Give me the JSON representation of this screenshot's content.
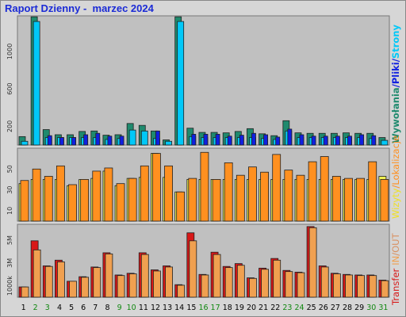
{
  "header": {
    "title": "Raport Dzienny -  marzec 2024"
  },
  "colors": {
    "plot_bg": "#c0c0c0",
    "wywolania": "#1f8a6e",
    "pliki": "#00c8f8",
    "strony": "#1020e0",
    "wizyty": "#f0f050",
    "lokalizacje": "#ff9020",
    "transfer": "#d81818",
    "in": "#f0a050",
    "out": "#d89060",
    "weekend_label": "#118811",
    "weekday_label": "#000000"
  },
  "legend": {
    "top_title": "Wywołania",
    "top_sep1": "/",
    "top_pliki": "Pliki",
    "top_sep2": "/",
    "top_strony": "Strony",
    "mid_wizyty": "Wizyty",
    "mid_sep": "/",
    "mid_lokalizacje": "Lokalizacje",
    "bot_transfer": "Transfer",
    "bot_in": "IN",
    "bot_sep": "/",
    "bot_out": "OUT"
  },
  "chart_data": [
    {
      "type": "bar",
      "panel": "top",
      "categories": [
        "1",
        "2",
        "3",
        "4",
        "5",
        "6",
        "7",
        "8",
        "9",
        "10",
        "11",
        "12",
        "13",
        "14",
        "15",
        "16",
        "17",
        "18",
        "19",
        "20",
        "21",
        "22",
        "23",
        "24",
        "25",
        "26",
        "27",
        "28",
        "29",
        "30",
        "31"
      ],
      "weekend": [
        false,
        true,
        true,
        false,
        false,
        false,
        false,
        false,
        true,
        true,
        false,
        false,
        false,
        false,
        false,
        true,
        true,
        false,
        false,
        false,
        false,
        false,
        true,
        true,
        false,
        false,
        false,
        false,
        false,
        true,
        true
      ],
      "y_ticks": [
        "200",
        "600",
        "1000"
      ],
      "y_tick_values": [
        200,
        600,
        1000
      ],
      "ylim": [
        0,
        1380
      ],
      "series": [
        {
          "name": "Wywołania",
          "values": [
            90,
            1370,
            165,
            110,
            110,
            145,
            150,
            105,
            110,
            230,
            210,
            150,
            55,
            1370,
            180,
            135,
            135,
            130,
            145,
            175,
            120,
            100,
            260,
            130,
            125,
            125,
            125,
            130,
            125,
            125,
            80
          ]
        },
        {
          "name": "Pliki",
          "values": [
            40,
            1320,
            80,
            80,
            80,
            80,
            80,
            60,
            70,
            160,
            150,
            70,
            40,
            1320,
            90,
            80,
            80,
            80,
            80,
            80,
            70,
            60,
            150,
            80,
            80,
            80,
            80,
            80,
            80,
            70,
            50
          ]
        },
        {
          "name": "Strony",
          "values": [
            0,
            0,
            100,
            80,
            80,
            110,
            125,
            95,
            95,
            0,
            0,
            150,
            0,
            0,
            115,
            115,
            115,
            95,
            105,
            125,
            110,
            85,
            170,
            110,
            95,
            95,
            95,
            95,
            110,
            100,
            0
          ]
        }
      ]
    },
    {
      "type": "bar",
      "panel": "middle",
      "categories": [
        "1",
        "2",
        "3",
        "4",
        "5",
        "6",
        "7",
        "8",
        "9",
        "10",
        "11",
        "12",
        "13",
        "14",
        "15",
        "16",
        "17",
        "18",
        "19",
        "20",
        "21",
        "22",
        "23",
        "24",
        "25",
        "26",
        "27",
        "28",
        "29",
        "30",
        "31"
      ],
      "y_ticks": [
        "10",
        "30",
        "50"
      ],
      "y_tick_values": [
        10,
        30,
        50
      ],
      "ylim": [
        0,
        70
      ],
      "series": [
        {
          "name": "Wizyty",
          "values": [
            36,
            40,
            40,
            40,
            34,
            40,
            41,
            48,
            34,
            41,
            42,
            65,
            42,
            28,
            40,
            40,
            40,
            40,
            40,
            40,
            40,
            40,
            40,
            40,
            40,
            40,
            40,
            40,
            40,
            40,
            43
          ]
        },
        {
          "name": "Lokalizacje",
          "values": [
            39,
            50,
            43,
            53,
            35,
            40,
            48,
            51,
            36,
            41,
            53,
            65,
            53,
            28,
            41,
            66,
            40,
            56,
            44,
            52,
            47,
            64,
            49,
            44,
            57,
            62,
            43,
            41,
            41,
            57,
            40
          ]
        }
      ]
    },
    {
      "type": "bar",
      "panel": "bottom",
      "categories": [
        "1",
        "2",
        "3",
        "4",
        "5",
        "6",
        "7",
        "8",
        "9",
        "10",
        "11",
        "12",
        "13",
        "14",
        "15",
        "16",
        "17",
        "18",
        "19",
        "20",
        "21",
        "22",
        "23",
        "24",
        "25",
        "26",
        "27",
        "28",
        "29",
        "30",
        "31"
      ],
      "y_ticks": [
        "1000k",
        "3M",
        "5M"
      ],
      "y_tick_values": [
        1000,
        3000,
        5000
      ],
      "ylim": [
        0,
        6400
      ],
      "series": [
        {
          "name": "Transfer",
          "values": [
            900,
            4950,
            2750,
            3250,
            1400,
            1800,
            2650,
            3900,
            1950,
            2100,
            3900,
            2400,
            2750,
            1100,
            5650,
            2000,
            3950,
            2700,
            2950,
            1700,
            2550,
            3400,
            2350,
            2200,
            6200,
            2750,
            2100,
            2000,
            1950,
            1950,
            1500
          ]
        },
        {
          "name": "IN",
          "values": [
            900,
            4150,
            2700,
            3100,
            1400,
            1750,
            2600,
            3800,
            1900,
            2050,
            3750,
            2300,
            2650,
            1050,
            4950,
            1950,
            3750,
            2600,
            2800,
            1650,
            2450,
            3250,
            2250,
            2150,
            6100,
            2650,
            2050,
            1950,
            1900,
            1900,
            1450
          ]
        }
      ]
    }
  ]
}
